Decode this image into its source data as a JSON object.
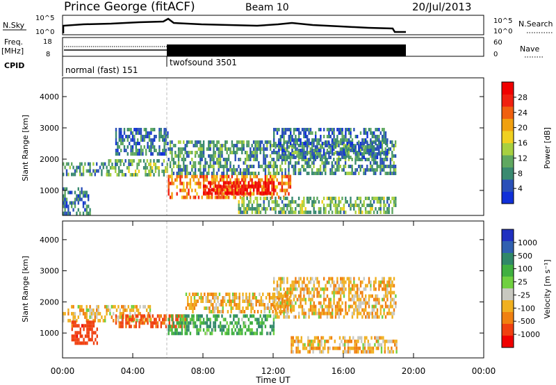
{
  "header": {
    "station": "Prince George (fitACF)",
    "beam": "Beam 10",
    "date": "20/Jul/2013"
  },
  "noise_panel": {
    "left_label": "N.Sky",
    "left_ticks": [
      "10^5",
      "10^0"
    ],
    "right_ticks": [
      "10^5",
      "10^0"
    ],
    "right_label": "N.Search"
  },
  "freq_panel": {
    "left_label_1": "Freq.",
    "left_label_2": "[MHz]",
    "left_ticks": [
      "18",
      "8"
    ],
    "right_ticks": [
      "60",
      "0"
    ],
    "right_label": "Nave"
  },
  "cpid": {
    "label": "CPID",
    "modes": [
      "normal (fast) 151",
      "twofsound 3501"
    ]
  },
  "colors": {
    "axis": "#000000",
    "mode_change_line": "#bbbbbb"
  },
  "chart_data": [
    {
      "type": "heatmap",
      "panel": "power",
      "ylabel": "Slant Range [km]",
      "yticks": [
        1000,
        2000,
        3000,
        4000
      ],
      "ylim": [
        200,
        4600
      ],
      "xlim": [
        0,
        24
      ],
      "colorbar": {
        "label": "Power [dB]",
        "ticks": [
          "4",
          "8",
          "12",
          "16",
          "20",
          "24",
          "28"
        ],
        "colors": [
          "#1030d8",
          "#2a50b8",
          "#3a8a70",
          "#60a860",
          "#a8d040",
          "#f0d020",
          "#f0a010",
          "#f06010",
          "#f02010",
          "#f00000"
        ]
      },
      "regions": [
        {
          "t0": 0.0,
          "t1": 2.5,
          "r0": 1500,
          "r1": 1900,
          "value": 10
        },
        {
          "t0": 0.0,
          "t1": 1.7,
          "r0": 300,
          "r1": 1100,
          "value": 8
        },
        {
          "t0": 2.5,
          "t1": 6.0,
          "r0": 1500,
          "r1": 2000,
          "value": 12
        },
        {
          "t0": 3.0,
          "t1": 6.0,
          "r0": 2200,
          "r1": 3000,
          "value": 8
        },
        {
          "t0": 6.0,
          "t1": 13.0,
          "r0": 800,
          "r1": 1500,
          "value": 22
        },
        {
          "t0": 8.0,
          "t1": 12.0,
          "r0": 900,
          "r1": 1300,
          "value": 28
        },
        {
          "t0": 6.0,
          "t1": 19.0,
          "r0": 1500,
          "r1": 2600,
          "value": 10
        },
        {
          "t0": 12.0,
          "t1": 18.5,
          "r0": 2000,
          "r1": 3000,
          "value": 8
        },
        {
          "t0": 10.0,
          "t1": 19.0,
          "r0": 300,
          "r1": 800,
          "value": 12
        }
      ]
    },
    {
      "type": "heatmap",
      "panel": "velocity",
      "xlabel": "Time UT",
      "ylabel": "Slant Range [km]",
      "yticks": [
        1000,
        2000,
        3000,
        4000
      ],
      "ylim": [
        200,
        4600
      ],
      "xlim": [
        0,
        24
      ],
      "xticks": [
        "00:00",
        "04:00",
        "08:00",
        "12:00",
        "16:00",
        "20:00",
        "00:00"
      ],
      "colorbar": {
        "label": "Velocity [m s⁻¹]",
        "ticks": [
          "1000",
          "500",
          "100",
          "25",
          "-25",
          "-100",
          "-500",
          "-1000"
        ],
        "colors": [
          "#2030c0",
          "#3060b0",
          "#308868",
          "#40b040",
          "#70d040",
          "#c8c8c0",
          "#f0b020",
          "#f08010",
          "#f04010",
          "#f00000"
        ]
      },
      "regions": [
        {
          "t0": 0.0,
          "t1": 5.0,
          "r0": 1400,
          "r1": 1900,
          "value": 0
        },
        {
          "t0": 0.5,
          "t1": 2.0,
          "r0": 700,
          "r1": 1400,
          "value": -300
        },
        {
          "t0": 3.0,
          "t1": 7.0,
          "r0": 1200,
          "r1": 1600,
          "value": -150
        },
        {
          "t0": 6.0,
          "t1": 12.0,
          "r0": 1000,
          "r1": 1600,
          "value": 200
        },
        {
          "t0": 7.0,
          "t1": 13.0,
          "r0": 1700,
          "r1": 2300,
          "value": 0
        },
        {
          "t0": 12.0,
          "t1": 19.0,
          "r0": 1500,
          "r1": 2800,
          "value": 0
        },
        {
          "t0": 13.0,
          "t1": 19.0,
          "r0": 400,
          "r1": 900,
          "value": 0
        }
      ]
    }
  ]
}
